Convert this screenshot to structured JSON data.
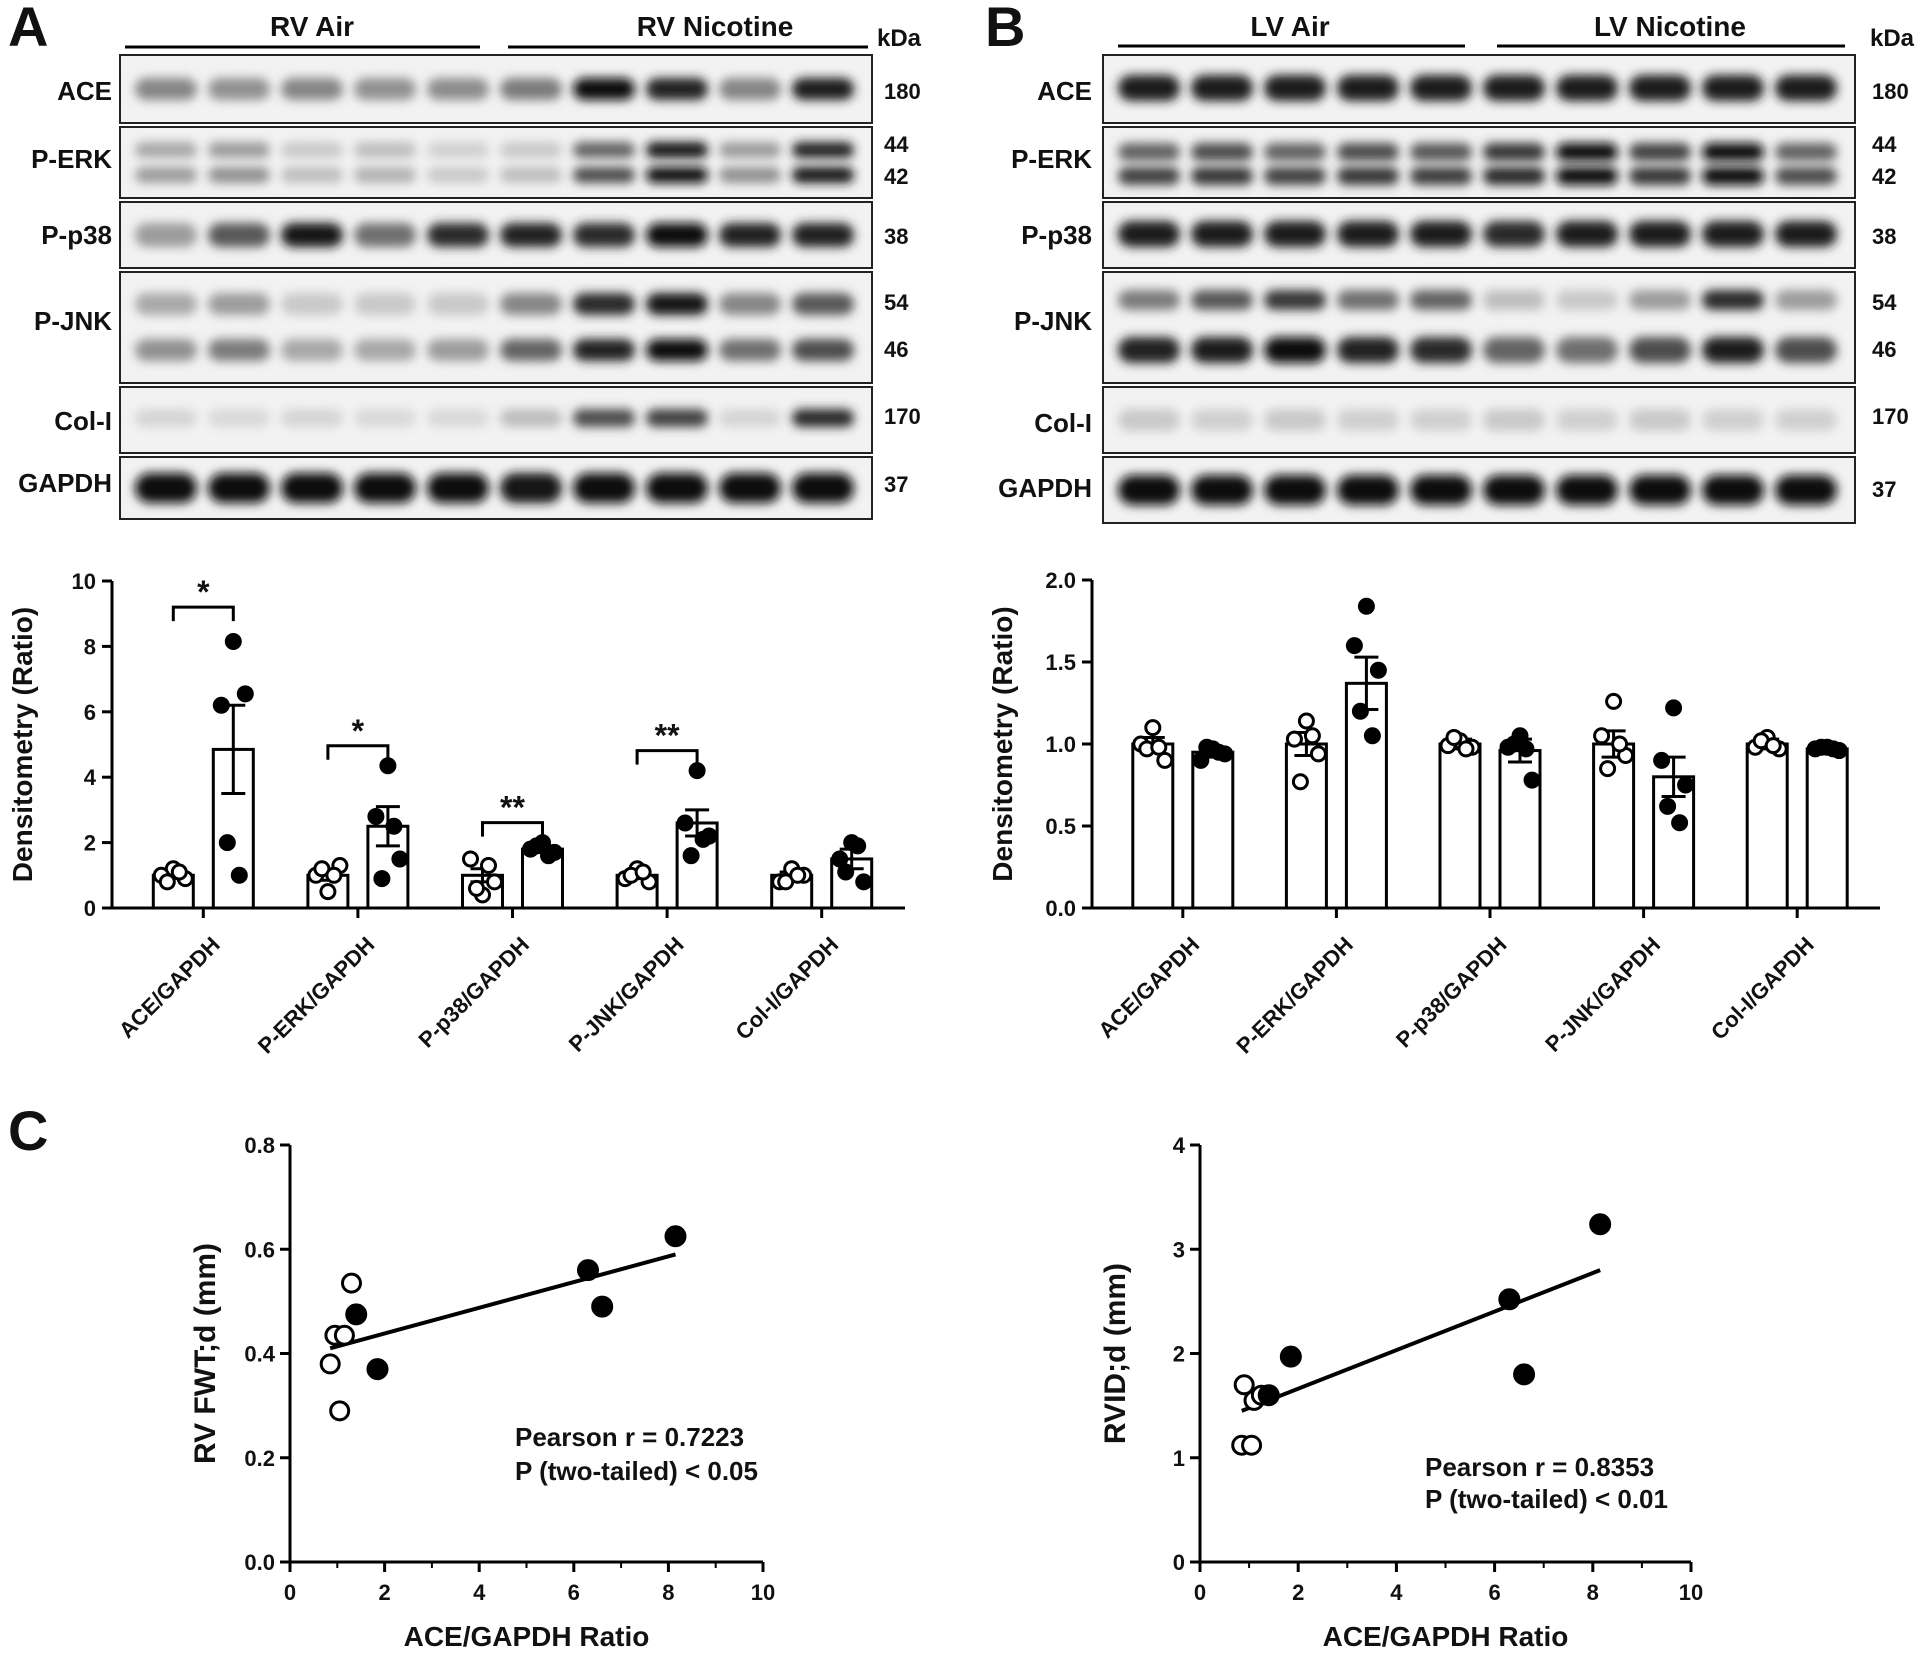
{
  "panels": {
    "A": {
      "letter": "A",
      "groups": [
        "RV Air",
        "RV Nicotine"
      ],
      "kda_label": "kDa",
      "blots": [
        {
          "name": "ACE",
          "kda": [
            "180"
          ]
        },
        {
          "name": "P-ERK",
          "kda": [
            "44",
            "42"
          ]
        },
        {
          "name": "P-p38",
          "kda": [
            "38"
          ]
        },
        {
          "name": "P-JNK",
          "kda": [
            "54",
            "46"
          ]
        },
        {
          "name": "Col-I",
          "kda": [
            "170"
          ]
        },
        {
          "name": "GAPDH",
          "kda": [
            "37"
          ]
        }
      ]
    },
    "B": {
      "letter": "B",
      "groups": [
        "LV Air",
        "LV Nicotine"
      ],
      "kda_label": "kDa",
      "blots": [
        {
          "name": "ACE",
          "kda": [
            "180"
          ]
        },
        {
          "name": "P-ERK",
          "kda": [
            "44",
            "42"
          ]
        },
        {
          "name": "P-p38",
          "kda": [
            "38"
          ]
        },
        {
          "name": "P-JNK",
          "kda": [
            "54",
            "46"
          ]
        },
        {
          "name": "Col-I",
          "kda": [
            "170"
          ]
        },
        {
          "name": "GAPDH",
          "kda": [
            "37"
          ]
        }
      ]
    },
    "C": {
      "letter": "C"
    }
  },
  "chart_data": [
    {
      "id": "A-bars",
      "type": "bar",
      "ylabel": "Densitometry (Ratio)",
      "ylim": [
        0,
        10
      ],
      "yticks": [
        "0",
        "2",
        "4",
        "6",
        "8",
        "10"
      ],
      "categories": [
        "ACE/GAPDH",
        "P-ERK/GAPDH",
        "P-p38/GAPDH",
        "P-JNK/GAPDH",
        "Col-I/GAPDH"
      ],
      "series": [
        {
          "group": "air",
          "values": [
            1.0,
            1.0,
            1.0,
            1.0,
            1.0
          ],
          "sem": [
            0.1,
            0.15,
            0.2,
            0.1,
            0.1
          ],
          "points": [
            [
              1.2,
              1.0,
              0.9,
              0.8,
              1.1
            ],
            [
              0.5,
              1.0,
              1.3,
              1.2,
              1.0
            ],
            [
              0.4,
              1.5,
              0.8,
              0.6,
              1.3
            ],
            [
              1.2,
              0.9,
              0.8,
              1.0,
              1.1
            ],
            [
              1.2,
              0.8,
              1.0,
              0.8,
              1.0
            ]
          ]
        },
        {
          "group": "nicotine",
          "values": [
            4.85,
            2.5,
            1.8,
            2.6,
            1.5
          ],
          "sem": [
            1.35,
            0.6,
            0.1,
            0.4,
            0.3
          ],
          "points": [
            [
              8.15,
              6.2,
              6.55,
              2.0,
              1.0
            ],
            [
              4.35,
              2.8,
              1.5,
              0.9,
              2.5
            ],
            [
              2.0,
              1.8,
              1.7,
              1.9,
              1.6
            ],
            [
              4.2,
              2.6,
              2.2,
              1.6,
              2.1
            ],
            [
              2.0,
              1.5,
              0.8,
              1.1,
              1.9
            ]
          ]
        }
      ],
      "significance": [
        {
          "category": "ACE/GAPDH",
          "label": "*"
        },
        {
          "category": "P-ERK/GAPDH",
          "label": "*"
        },
        {
          "category": "P-p38/GAPDH",
          "label": "**"
        },
        {
          "category": "P-JNK/GAPDH",
          "label": "**"
        }
      ]
    },
    {
      "id": "B-bars",
      "type": "bar",
      "ylabel": "Densitometry (Ratio)",
      "ylim": [
        0,
        2.0
      ],
      "yticks": [
        "0.0",
        "0.5",
        "1.0",
        "1.5",
        "2.0"
      ],
      "categories": [
        "ACE/GAPDH",
        "P-ERK/GAPDH",
        "P-p38/GAPDH",
        "P-JNK/GAPDH",
        "Col-I/GAPDH"
      ],
      "series": [
        {
          "group": "air",
          "values": [
            1.0,
            1.0,
            1.0,
            1.0,
            1.0
          ],
          "sem": [
            0.04,
            0.07,
            0.03,
            0.08,
            0.03
          ],
          "points": [
            [
              1.1,
              1.0,
              0.9,
              0.97,
              0.98
            ],
            [
              1.14,
              1.03,
              0.94,
              0.77,
              1.05
            ],
            [
              1.02,
              0.99,
              0.98,
              1.04,
              0.97
            ],
            [
              1.26,
              1.05,
              0.93,
              0.85,
              1.0
            ],
            [
              1.04,
              0.98,
              0.97,
              1.02,
              0.99
            ]
          ]
        },
        {
          "group": "nicotine",
          "values": [
            0.95,
            1.37,
            0.96,
            0.8,
            0.97
          ],
          "sem": [
            0.03,
            0.16,
            0.07,
            0.12,
            0.01
          ],
          "points": [
            [
              0.97,
              0.9,
              0.94,
              0.98,
              0.95
            ],
            [
              1.84,
              1.6,
              1.45,
              1.2,
              1.05
            ],
            [
              1.05,
              0.98,
              0.78,
              1.0,
              0.97
            ],
            [
              1.22,
              0.9,
              0.75,
              0.62,
              0.52
            ],
            [
              0.98,
              0.97,
              0.96,
              0.98,
              0.97
            ]
          ]
        }
      ]
    },
    {
      "id": "C-left",
      "type": "scatter",
      "xlabel": "ACE/GAPDH Ratio",
      "ylabel": "RV FWT;d (mm)",
      "xlim": [
        0,
        10
      ],
      "ylim": [
        0,
        0.8
      ],
      "xticks": [
        "0",
        "2",
        "4",
        "6",
        "8",
        "10"
      ],
      "yticks": [
        "0.0",
        "0.2",
        "0.4",
        "0.6",
        "0.8"
      ],
      "air": [
        [
          0.85,
          0.38
        ],
        [
          0.95,
          0.435
        ],
        [
          1.05,
          0.29
        ],
        [
          1.15,
          0.435
        ],
        [
          1.3,
          0.535
        ]
      ],
      "nicotine": [
        [
          1.4,
          0.475
        ],
        [
          1.85,
          0.37
        ],
        [
          6.3,
          0.56
        ],
        [
          6.6,
          0.49
        ],
        [
          8.15,
          0.625
        ]
      ],
      "fit": [
        [
          0.85,
          0.41
        ],
        [
          8.15,
          0.59
        ]
      ],
      "stats": [
        "Pearson r = 0.7223",
        "P (two-tailed) < 0.05"
      ]
    },
    {
      "id": "C-right",
      "type": "scatter",
      "xlabel": "ACE/GAPDH Ratio",
      "ylabel": "RVID;d (mm)",
      "xlim": [
        0,
        10
      ],
      "ylim": [
        0,
        4
      ],
      "xticks": [
        "0",
        "2",
        "4",
        "6",
        "8",
        "10"
      ],
      "yticks": [
        "0",
        "1",
        "2",
        "3",
        "4"
      ],
      "air": [
        [
          0.85,
          1.12
        ],
        [
          0.9,
          1.7
        ],
        [
          1.05,
          1.12
        ],
        [
          1.1,
          1.55
        ],
        [
          1.25,
          1.6
        ]
      ],
      "nicotine": [
        [
          1.4,
          1.6
        ],
        [
          1.85,
          1.97
        ],
        [
          6.3,
          2.52
        ],
        [
          6.6,
          1.8
        ],
        [
          8.15,
          3.24
        ]
      ],
      "fit": [
        [
          0.85,
          1.45
        ],
        [
          8.15,
          2.8
        ]
      ],
      "stats": [
        "Pearson r = 0.8353",
        "P (two-tailed) < 0.01"
      ]
    }
  ]
}
